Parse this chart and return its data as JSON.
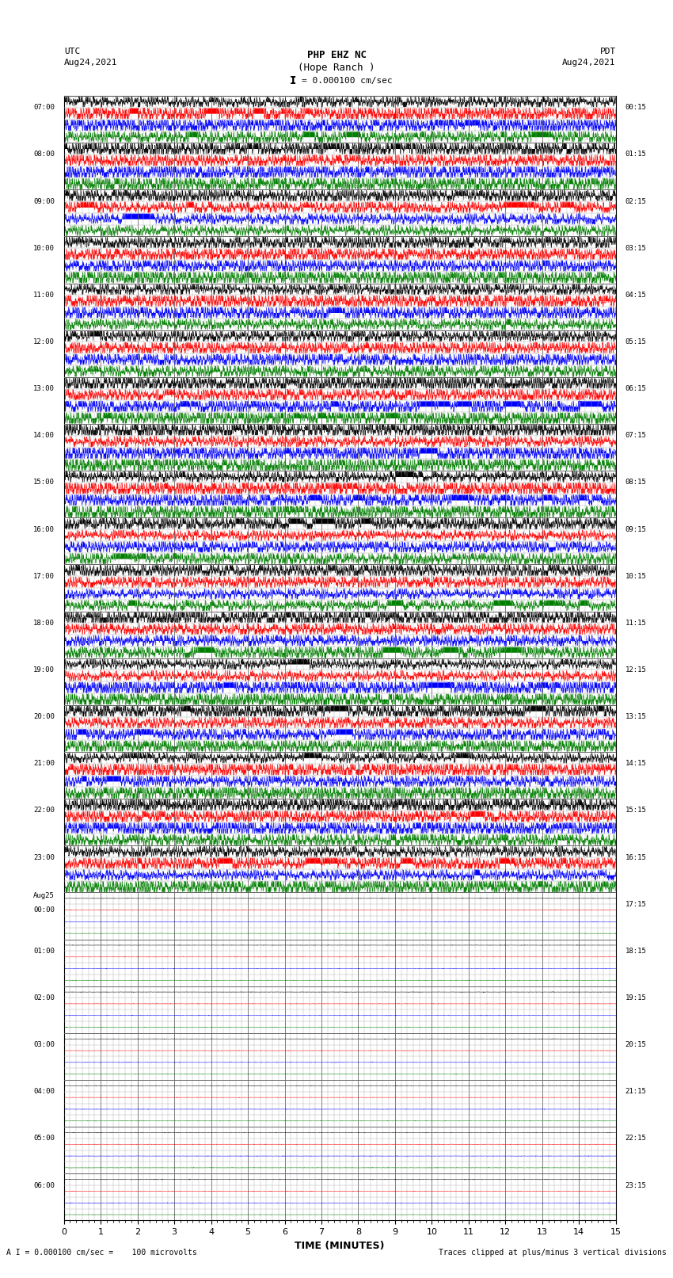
{
  "title_line1": "PHP EHZ NC",
  "title_line2": "(Hope Ranch )",
  "scale_text": "I = 0.000100 cm/sec",
  "left_label": "UTC",
  "right_label": "PDT",
  "left_date": "Aug24,2021",
  "right_date": "Aug24,2021",
  "xlabel": "TIME (MINUTES)",
  "footnote_left": "A I = 0.000100 cm/sec =    100 microvolts",
  "footnote_right": "Traces clipped at plus/minus 3 vertical divisions",
  "xmin": 0,
  "xmax": 15,
  "num_rows": 64,
  "utc_labels": [
    "07:00",
    "08:00",
    "09:00",
    "10:00",
    "11:00",
    "12:00",
    "13:00",
    "14:00",
    "15:00",
    "16:00",
    "17:00",
    "18:00",
    "19:00",
    "20:00",
    "21:00",
    "22:00",
    "23:00",
    "Aug25\n00:00",
    "01:00",
    "02:00",
    "03:00",
    "04:00",
    "05:00",
    "06:00"
  ],
  "pdt_labels": [
    "00:15",
    "01:15",
    "02:15",
    "03:15",
    "04:15",
    "05:15",
    "06:15",
    "07:15",
    "08:15",
    "09:15",
    "10:15",
    "11:15",
    "12:15",
    "13:15",
    "14:15",
    "15:15",
    "16:15",
    "17:15",
    "18:15",
    "19:15",
    "20:15",
    "21:15",
    "22:15",
    "23:15"
  ],
  "active_band_rows": 34,
  "bg_color": "white",
  "grid_color": "#888888",
  "trace_colors": [
    "black",
    "red",
    "blue",
    "green"
  ],
  "seed": 12345
}
